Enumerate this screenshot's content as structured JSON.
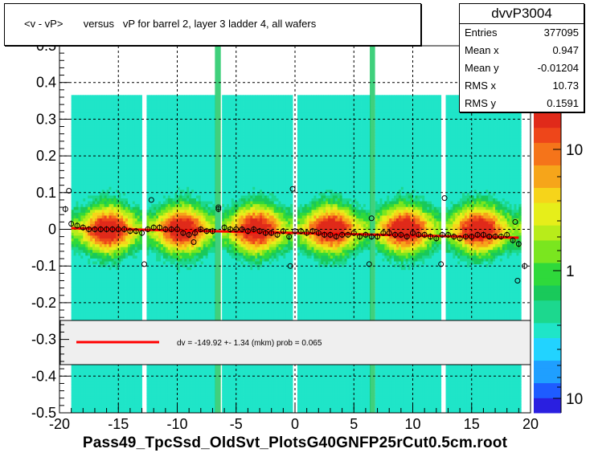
{
  "title": "<v - vP>       versus   vP for barrel 2, layer 3 ladder 4, all wafers",
  "stats": {
    "name": "dvvP3004",
    "rows": [
      {
        "label": "Entries",
        "value": "377095"
      },
      {
        "label": "Mean x",
        "value": "0.947"
      },
      {
        "label": "Mean y",
        "value": "-0.01204"
      },
      {
        "label": "RMS x",
        "value": "10.73"
      },
      {
        "label": "RMS y",
        "value": "0.1591"
      }
    ]
  },
  "xaxis_title": "Pass49_TpcSsd_OldSvt_PlotsG40GNFP25rCut0.5cm.root",
  "legend_text": "dv = -149.92 +-  1.34 (mkm) prob = 0.065",
  "colors": {
    "fit_line": "#ff0000",
    "profile_marker": "#000000",
    "grid": "#000000"
  },
  "chart_data": {
    "type": "heatmap",
    "title": "<v - vP>       versus   vP for barrel 2, layer 3 ladder 4, all wafers",
    "xlabel": "Pass49_TpcSsd_OldSvt_PlotsG40GNFP25rCut0.5cm.root",
    "ylabel": "",
    "xlim": [
      -20,
      20
    ],
    "ylim": [
      -0.5,
      0.5
    ],
    "x_ticks": [
      -20,
      -15,
      -10,
      -5,
      0,
      5,
      10,
      15,
      20
    ],
    "y_ticks": [
      -0.5,
      -0.4,
      -0.3,
      -0.2,
      -0.1,
      0,
      0.1,
      0.2,
      0.3,
      0.4,
      0.5
    ],
    "x_tick_labels": [
      "-20",
      "-15",
      "-10",
      "-5",
      "0",
      "5",
      "10",
      "15",
      "20"
    ],
    "y_tick_labels": [
      "-0.5",
      "-0.4",
      "-0.3",
      "-0.2",
      "-0.1",
      "0",
      "0.1",
      "0.2",
      "0.3",
      "0.4",
      "0.5"
    ],
    "z_scale": "log",
    "z_tick_labels": [
      "10",
      "1",
      "10"
    ],
    "grid": true,
    "occupied_x_range": [
      -19,
      19
    ],
    "gaps_x": [
      -13.1,
      -12.6,
      -6.8,
      -6.3,
      -0.2,
      0.15,
      6.4,
      6.8,
      12.4,
      12.8
    ],
    "profile": {
      "x": [
        -19.5,
        -19,
        -18.5,
        -18,
        -17.5,
        -17,
        -16.5,
        -16,
        -15.5,
        -15,
        -14.5,
        -14,
        -13.5,
        -13,
        -12.5,
        -12,
        -11.5,
        -11,
        -10.5,
        -10,
        -9.5,
        -9,
        -8.5,
        -8,
        -7.5,
        -7,
        -6.5,
        -6,
        -5.5,
        -5,
        -4.5,
        -4,
        -3.5,
        -3,
        -2.5,
        -2,
        -1.5,
        -1,
        -0.5,
        0,
        0.5,
        1,
        1.5,
        2,
        2.5,
        3,
        3.5,
        4,
        4.5,
        5,
        5.5,
        6,
        6.5,
        7,
        7.5,
        8,
        8.5,
        9,
        9.5,
        10,
        10.5,
        11,
        11.5,
        12,
        12.5,
        13,
        13.5,
        14,
        14.5,
        15,
        15.5,
        16,
        16.5,
        17,
        17.5,
        18,
        18.5,
        19,
        19.5
      ],
      "y": [
        0.055,
        0.015,
        0.01,
        0.005,
        0.0,
        0.0,
        0.0,
        0.0,
        0.0,
        0.0,
        0.0,
        -0.005,
        -0.005,
        -0.01,
        0.0,
        0.005,
        0.005,
        0.0,
        0.0,
        0.0,
        -0.01,
        -0.015,
        -0.01,
        0.0,
        -0.005,
        -0.005,
        0.055,
        0.005,
        0.0,
        0.0,
        0.0,
        -0.005,
        0.0,
        -0.005,
        -0.01,
        -0.01,
        -0.015,
        -0.005,
        -0.02,
        -0.005,
        -0.005,
        -0.01,
        -0.005,
        -0.01,
        -0.015,
        -0.015,
        -0.02,
        -0.015,
        -0.015,
        -0.01,
        -0.02,
        -0.015,
        -0.02,
        -0.02,
        -0.01,
        -0.01,
        -0.015,
        -0.015,
        -0.02,
        -0.01,
        -0.015,
        -0.015,
        -0.02,
        -0.025,
        -0.015,
        -0.015,
        -0.02,
        -0.025,
        -0.02,
        -0.02,
        -0.015,
        -0.015,
        -0.02,
        -0.02,
        -0.02,
        -0.015,
        -0.03,
        -0.04,
        -0.1
      ]
    },
    "fit": {
      "x": [
        -19,
        19
      ],
      "y": [
        0.003,
        -0.023
      ]
    },
    "outliers": [
      {
        "x": -19.2,
        "y": 0.105
      },
      {
        "x": -12.8,
        "y": -0.095
      },
      {
        "x": -12.2,
        "y": 0.08
      },
      {
        "x": -8.6,
        "y": -0.035
      },
      {
        "x": -6.5,
        "y": 0.06
      },
      {
        "x": -0.2,
        "y": 0.11
      },
      {
        "x": -0.4,
        "y": -0.1
      },
      {
        "x": 6.5,
        "y": 0.03
      },
      {
        "x": 6.3,
        "y": -0.095
      },
      {
        "x": 12.7,
        "y": 0.085
      },
      {
        "x": 12.4,
        "y": -0.095
      },
      {
        "x": 18.7,
        "y": 0.02
      },
      {
        "x": 18.9,
        "y": -0.14
      },
      {
        "x": 16.5,
        "y": -0.02
      }
    ],
    "legend": {
      "entries": [
        "dv = -149.92 +-  1.34 (mkm) prob = 0.065"
      ],
      "placement": "lower-center"
    }
  }
}
